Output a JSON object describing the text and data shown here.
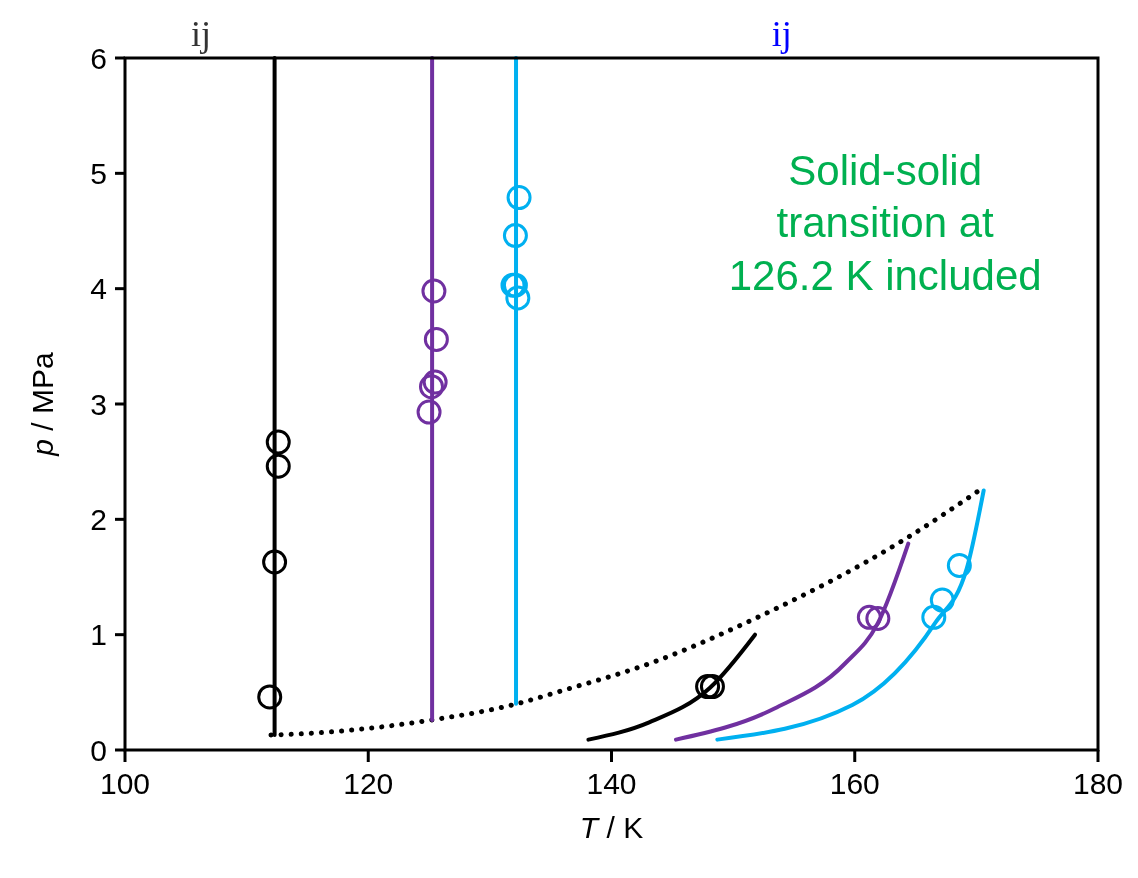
{
  "chart_data": {
    "type": "scatter",
    "xlabel": "T / K",
    "ylabel": "p / MPa",
    "xlim": [
      100,
      180
    ],
    "ylim": [
      0,
      6
    ],
    "xticks": [
      100,
      120,
      140,
      160,
      180
    ],
    "yticks": [
      0,
      1,
      2,
      3,
      4,
      5,
      6
    ],
    "grid": false,
    "marker": "circle",
    "annotations": [
      "ij",
      "ij",
      "Solid-solid\ntransition at\n126.2 K included"
    ],
    "series": [
      {
        "type": "line",
        "marker": "none",
        "color": "#000000",
        "line_style": "dotted",
        "x": [
          112,
          114.4,
          125.2,
          132.2,
          135.8,
          143.4,
          151.6,
          164,
          170.5
        ],
        "values": [
          0.13,
          0.14,
          0.26,
          0.4,
          0.51,
          0.76,
          1.13,
          1.82,
          2.27
        ]
      },
      {
        "type": "line",
        "marker": "none",
        "color": "#000000",
        "x": [
          112.3,
          112.3
        ],
        "values": [
          0.13,
          6
        ]
      },
      {
        "type": "line",
        "marker": "none",
        "color": "#7030a0",
        "x": [
          125.25,
          125.25
        ],
        "values": [
          0.26,
          6
        ]
      },
      {
        "type": "line",
        "marker": "none",
        "color": "#00b0f0",
        "x": [
          132.15,
          132.15
        ],
        "values": [
          0.4,
          6
        ]
      },
      {
        "type": "line",
        "marker": "none",
        "color": "#000000",
        "x": [
          138.1,
          143.1,
          148.1,
          151.8
        ],
        "values": [
          0.09,
          0.24,
          0.54,
          1.0
        ]
      },
      {
        "type": "line",
        "marker": "none",
        "color": "#7030a0",
        "x": [
          145.3,
          153.4,
          159.2,
          161.9,
          164.4
        ],
        "values": [
          0.09,
          0.36,
          0.75,
          1.1,
          1.79
        ]
      },
      {
        "type": "line",
        "marker": "none",
        "color": "#00b0f0",
        "x": [
          148.7,
          159.8,
          166.6,
          169.2,
          170.6
        ],
        "values": [
          0.09,
          0.39,
          1.1,
          1.57,
          2.25
        ]
      },
      {
        "color": "#000000",
        "x": [
          112.6,
          112.6,
          112.3,
          111.9,
          147.9,
          148.3
        ],
        "values": [
          2.67,
          2.46,
          1.63,
          0.46,
          0.55,
          0.55
        ]
      },
      {
        "color": "#7030a0",
        "x": [
          125.4,
          125.6,
          125.5,
          125.2,
          125.0,
          161.2,
          161.9
        ],
        "values": [
          3.98,
          3.56,
          3.19,
          3.15,
          2.93,
          1.15,
          1.14
        ]
      },
      {
        "color": "#00b0f0",
        "x": [
          132.4,
          132.1,
          132.1,
          132.3,
          131.9,
          168.6,
          167.2,
          166.5
        ],
        "values": [
          4.79,
          4.46,
          4.03,
          3.92,
          4.03,
          1.6,
          1.3,
          1.15
        ]
      }
    ]
  }
}
